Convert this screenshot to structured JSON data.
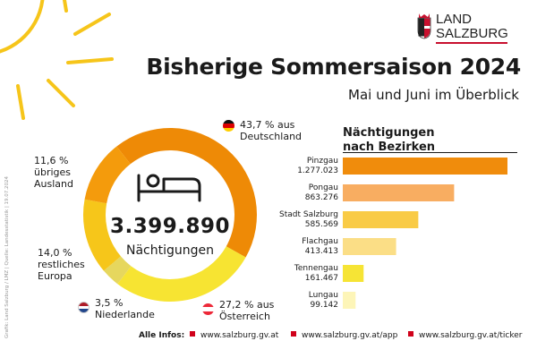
{
  "header": {
    "title": "Bisherige Sommersaison 2024",
    "subtitle": "Mai und Juni im Überblick",
    "logo_line1": "LAND",
    "logo_line2": "SALZBURG"
  },
  "colors": {
    "deutschland": "#ee8a06",
    "oesterreich": "#f7e432",
    "niederlande": "#e6d75e",
    "restliches_europa": "#f6c61a",
    "uebriges_ausland": "#f49b0c",
    "sun": "#f6c51a",
    "accent_red": "#d0021b"
  },
  "chart_data": [
    {
      "type": "pie",
      "title": "3.399.890",
      "center_label": "Nächtigungen",
      "total": "3.399.890",
      "slices": [
        {
          "key": "deutschland",
          "pct_text": "43,7 %",
          "line2": "aus",
          "line3": "Deutschland",
          "value": 43.7
        },
        {
          "key": "oesterreich",
          "pct_text": "27,2 %",
          "line2": "aus",
          "line3": "Österreich",
          "value": 27.2
        },
        {
          "key": "niederlande",
          "pct_text": "3,5 %",
          "line2": "",
          "line3": "Niederlande",
          "value": 3.5
        },
        {
          "key": "restliches_europa",
          "pct_text": "14,0 %",
          "line2": "restliches",
          "line3": "Europa",
          "value": 14.0
        },
        {
          "key": "uebriges_ausland",
          "pct_text": "11,6 %",
          "line2": "übriges",
          "line3": "Ausland",
          "value": 11.6
        }
      ]
    },
    {
      "type": "bar",
      "title_line1": "Nächtigungen",
      "title_line2": "nach Bezirken",
      "categories": [
        "Pinzgau",
        "Pongau",
        "Stadt Salzburg",
        "Flachgau",
        "Tennengau",
        "Lungau"
      ],
      "labels": [
        "1.277.023",
        "863.276",
        "585.569",
        "413.413",
        "161.467",
        "99.142"
      ],
      "values": [
        1277023,
        863276,
        585569,
        413413,
        161467,
        99142
      ],
      "colors": [
        "#f08c0c",
        "#f8ad61",
        "#f9cb46",
        "#fbde86",
        "#f6e435",
        "#fdf5b8"
      ]
    }
  ],
  "footer": {
    "label": "Alle Infos:",
    "links": [
      "www.salzburg.gv.at",
      "www.salzburg.gv.at/app",
      "www.salzburg.gv.at/ticker"
    ]
  },
  "credit": "Grafik: Land Salzburg / LMZ | Quelle: Landesstatistik | 19.07.2024"
}
